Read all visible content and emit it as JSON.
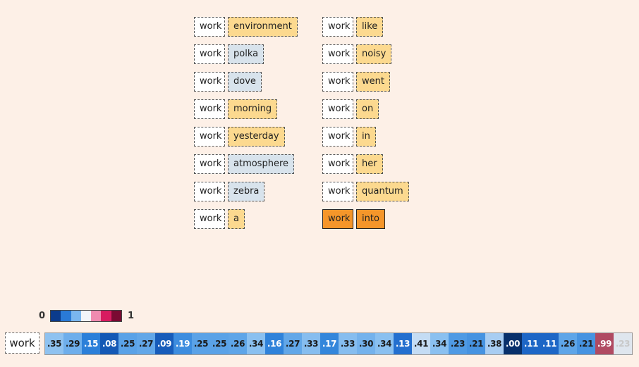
{
  "query_word": "work",
  "pairs": [
    {
      "left": "work",
      "right": "environment",
      "color": "#fcd98f"
    },
    {
      "left": "work",
      "right": "polka",
      "color": "#d8e3ec"
    },
    {
      "left": "work",
      "right": "dove",
      "color": "#d8e3ec"
    },
    {
      "left": "work",
      "right": "morning",
      "color": "#fcd98f"
    },
    {
      "left": "work",
      "right": "yesterday",
      "color": "#fcd98f"
    },
    {
      "left": "work",
      "right": "atmosphere",
      "color": "#d8e3ec"
    },
    {
      "left": "work",
      "right": "zebra",
      "color": "#d8e3ec"
    },
    {
      "left": "work",
      "right": "a",
      "color": "#fcd98f"
    },
    {
      "left": "work",
      "right": "like",
      "color": "#fcd98f"
    },
    {
      "left": "work",
      "right": "noisy",
      "color": "#fcd98f"
    },
    {
      "left": "work",
      "right": "went",
      "color": "#fcd98f"
    },
    {
      "left": "work",
      "right": "on",
      "color": "#fcd98f"
    },
    {
      "left": "work",
      "right": "in",
      "color": "#fcd98f"
    },
    {
      "left": "work",
      "right": "her",
      "color": "#fcd98f"
    },
    {
      "left": "work",
      "right": "quantum",
      "color": "#fcd98f"
    },
    {
      "left": "work",
      "right": "into",
      "color": "#f5962a",
      "highlighted": true
    }
  ],
  "legend": {
    "min_label": "0",
    "max_label": "1",
    "colors": [
      "#0b3b8c",
      "#2a7ad6",
      "#7ab6ee",
      "#f3f5f9",
      "#f08bb0",
      "#d81b60",
      "#7a0a32"
    ]
  },
  "scores": [
    {
      "label": ".35",
      "color": "#8fc2f0",
      "text_color": "#1a1a1a"
    },
    {
      "label": ".29",
      "color": "#6eaeeb",
      "text_color": "#1a1a1a"
    },
    {
      "label": ".15",
      "color": "#2b7fd9",
      "text_color": "#ffffff"
    },
    {
      "label": ".08",
      "color": "#1458b5",
      "text_color": "#ffffff"
    },
    {
      "label": ".25",
      "color": "#5aa2e7",
      "text_color": "#1a1a1a"
    },
    {
      "label": ".27",
      "color": "#62a7e8",
      "text_color": "#1a1a1a"
    },
    {
      "label": ".09",
      "color": "#175cba",
      "text_color": "#ffffff"
    },
    {
      "label": ".19",
      "color": "#3d8ddf",
      "text_color": "#ffffff"
    },
    {
      "label": ".25",
      "color": "#5aa2e7",
      "text_color": "#1a1a1a"
    },
    {
      "label": ".25",
      "color": "#5aa2e7",
      "text_color": "#1a1a1a"
    },
    {
      "label": ".26",
      "color": "#5ea5e8",
      "text_color": "#1a1a1a"
    },
    {
      "label": ".34",
      "color": "#8ac0f0",
      "text_color": "#1a1a1a"
    },
    {
      "label": ".16",
      "color": "#2f82da",
      "text_color": "#ffffff"
    },
    {
      "label": ".27",
      "color": "#62a7e8",
      "text_color": "#1a1a1a"
    },
    {
      "label": ".33",
      "color": "#86bdef",
      "text_color": "#1a1a1a"
    },
    {
      "label": ".17",
      "color": "#3386db",
      "text_color": "#ffffff"
    },
    {
      "label": ".33",
      "color": "#86bdef",
      "text_color": "#1a1a1a"
    },
    {
      "label": ".30",
      "color": "#74b2ec",
      "text_color": "#1a1a1a"
    },
    {
      "label": ".34",
      "color": "#8ac0f0",
      "text_color": "#1a1a1a"
    },
    {
      "label": ".13",
      "color": "#236fcf",
      "text_color": "#ffffff"
    },
    {
      "label": ".41",
      "color": "#c4dcf4",
      "text_color": "#1a1a1a"
    },
    {
      "label": ".34",
      "color": "#8ac0f0",
      "text_color": "#1a1a1a"
    },
    {
      "label": ".23",
      "color": "#4f9ae4",
      "text_color": "#1a1a1a"
    },
    {
      "label": ".21",
      "color": "#4693e1",
      "text_color": "#1a1a1a"
    },
    {
      "label": ".38",
      "color": "#a8cdf2",
      "text_color": "#1a1a1a"
    },
    {
      "label": ".00",
      "color": "#08306b",
      "text_color": "#ffffff"
    },
    {
      "label": ".11",
      "color": "#1d66c6",
      "text_color": "#ffffff"
    },
    {
      "label": ".11",
      "color": "#1d66c6",
      "text_color": "#ffffff"
    },
    {
      "label": ".26",
      "color": "#5ea5e8",
      "text_color": "#1a1a1a"
    },
    {
      "label": ".21",
      "color": "#4693e1",
      "text_color": "#1a1a1a"
    },
    {
      "label": ".99",
      "color": "#b04a62",
      "text_color": "#ffffff"
    },
    {
      "label": ".23",
      "color": "#dfe6ee",
      "text_color": "#c8c8c8"
    }
  ]
}
